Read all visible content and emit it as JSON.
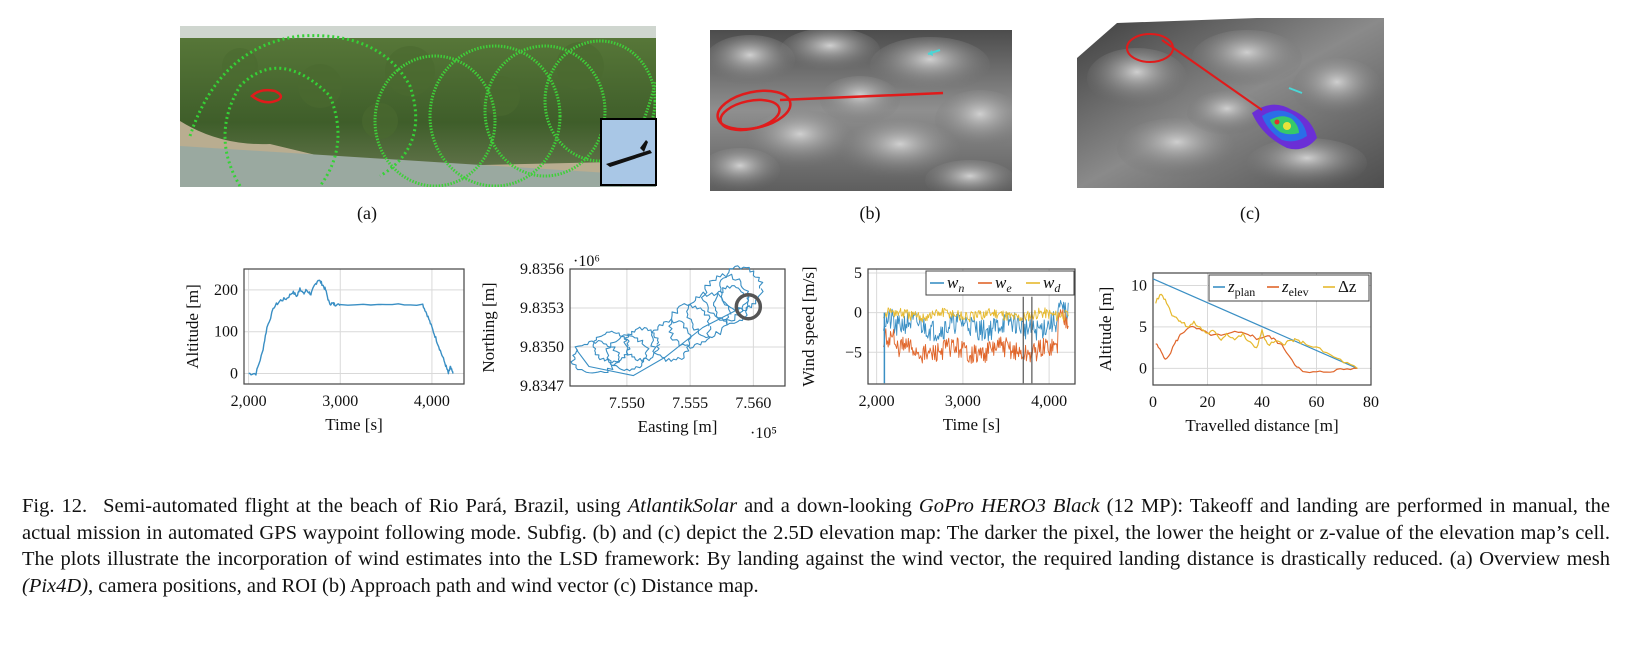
{
  "subfig_labels": [
    "(a)",
    "(b)",
    "(c)"
  ],
  "icons": {
    "a": "mesh-overview-image",
    "b": "elevation-approach-image",
    "c": "distance-map-image",
    "inset": "aircraft-inset-photo"
  },
  "plots": [
    {
      "type": "line",
      "xlabel": "Time [s]",
      "ylabel": "Altitude [m]",
      "xticks": [
        "2,000",
        "3,000",
        "4,000"
      ],
      "yticks": [
        "0",
        "100",
        "200"
      ],
      "xlim": [
        1950,
        4350
      ],
      "ylim": [
        -25,
        250
      ],
      "color": "#3a8fc4",
      "series": [
        {
          "x": [
            2000,
            2080,
            2150,
            2200,
            2280,
            2350,
            2420,
            2480,
            2530,
            2560,
            2600,
            2630,
            2680,
            2720,
            2760,
            2800,
            2840,
            2880,
            2920,
            2950,
            3000,
            3500,
            3900,
            3950,
            4000,
            4050,
            4100,
            4150,
            4180,
            4200,
            4230
          ],
          "y": [
            0,
            0,
            50,
            110,
            160,
            175,
            180,
            195,
            185,
            205,
            190,
            200,
            190,
            210,
            225,
            215,
            200,
            168,
            167,
            165,
            165,
            166,
            165,
            140,
            110,
            80,
            50,
            20,
            0,
            15,
            0
          ]
        }
      ]
    },
    {
      "type": "line",
      "xlabel": "Easting [m]",
      "ylabel": "Northing [m]",
      "xticks": [
        "7.550",
        "7.555",
        "7.560"
      ],
      "yticks": [
        "9.8347",
        "9.8350",
        "9.8353",
        "9.8356"
      ],
      "x_exponent": "·10⁵",
      "y_exponent": "·10⁶",
      "xlim": [
        7.5455,
        7.5625
      ],
      "ylim": [
        9.8347,
        9.8356
      ],
      "color": "#3a8fc4"
    },
    {
      "type": "line",
      "xlabel": "Time [s]",
      "ylabel": "Wind speed [m/s]",
      "xticks": [
        "2,000",
        "3,000",
        "4,000"
      ],
      "yticks": [
        "5",
        "0",
        "−5"
      ],
      "xlim": [
        1900,
        4300
      ],
      "ylim": [
        -9,
        5.5
      ],
      "series": [
        {
          "name": "w_n",
          "color": "#3a8fc4",
          "y_level": -1.7
        },
        {
          "name": "w_e",
          "color": "#e0652a",
          "y_level": -4.8
        },
        {
          "name": "w_d",
          "color": "#e6b92e",
          "y_level": -0.3
        }
      ]
    },
    {
      "type": "line",
      "xlabel": "Travelled distance [m]",
      "ylabel": "Altitude [m]",
      "xticks": [
        "0",
        "20",
        "40",
        "60",
        "80"
      ],
      "yticks": [
        "0",
        "5",
        "10"
      ],
      "xlim": [
        0,
        80
      ],
      "ylim": [
        -2,
        11.5
      ],
      "series": [
        {
          "name": "z_plan",
          "color": "#3a8fc4",
          "x": [
            0,
            75
          ],
          "y": [
            10.8,
            0
          ]
        },
        {
          "name": "z_elev",
          "color": "#e0652a",
          "x": [
            1,
            3,
            5,
            8,
            10,
            13,
            16,
            20,
            25,
            30,
            35,
            38,
            42,
            45,
            48,
            52,
            55,
            60,
            65,
            70,
            75
          ],
          "y": [
            3,
            2,
            1,
            3,
            4,
            5,
            4.8,
            4.2,
            3.9,
            4.3,
            4.2,
            3.6,
            3.9,
            3.4,
            2.5,
            0.6,
            -0.5,
            -0.5,
            -0.3,
            -0.1,
            0
          ]
        },
        {
          "name": "Δz",
          "color": "#e6b92e",
          "x": [
            1,
            3,
            5,
            7,
            9,
            11,
            13,
            15,
            18,
            20,
            22,
            25,
            27,
            30,
            33,
            35,
            38,
            40,
            42,
            45,
            48,
            50,
            52,
            55,
            60,
            65,
            70,
            75
          ],
          "y": [
            8,
            9,
            8,
            6.5,
            6,
            5.5,
            5,
            5.5,
            4.7,
            4.2,
            4.5,
            3.5,
            4.2,
            3.5,
            4.1,
            3.2,
            2.5,
            4.5,
            2.8,
            3.2,
            3,
            3.3,
            3.4,
            3.1,
            2.5,
            1.6,
            0.8,
            0
          ]
        }
      ]
    }
  ],
  "caption": {
    "fig": "Fig. 12.",
    "t1": "Semi-automated flight at the beach of Rio Pará, Brazil, using ",
    "i1": "AtlantikSolar",
    "t2": " and a down-looking ",
    "i2": "GoPro HERO3 Black",
    "t3": " (12 MP): Takeoff and landing are performed in manual, the actual mission in automated GPS waypoint following mode. Subfig. (b) and (c) depict the 2.5D elevation map: The darker the pixel, the lower the height or z-value of the elevation map’s cell. The plots illustrate the incorporation of wind estimates into the LSD framework: By landing against the wind vector, the required landing distance is drastically reduced. (a) Overview mesh ",
    "i3": "(Pix4D)",
    "t4": ", camera positions, and ROI (b) Approach path and wind vector (c) Distance map."
  }
}
